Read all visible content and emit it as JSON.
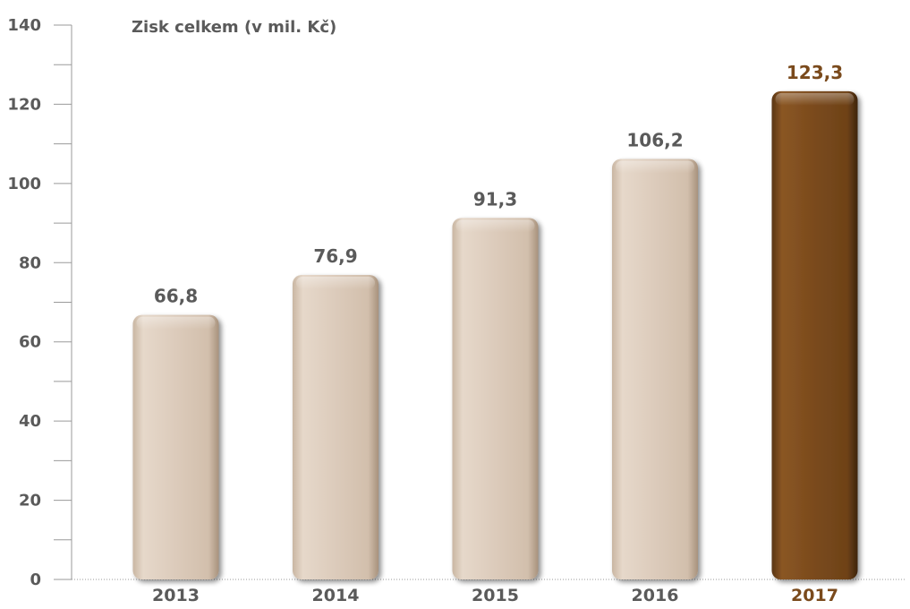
{
  "chart_data": {
    "type": "bar",
    "title": "Zisk celkem (v mil. Kč)",
    "xlabel": "",
    "ylabel": "",
    "categories": [
      "2013",
      "2014",
      "2015",
      "2016",
      "2017"
    ],
    "values": [
      66.8,
      76.9,
      91.3,
      106.2,
      123.3
    ],
    "value_labels": [
      "66,8",
      "76,9",
      "91,3",
      "106,2",
      "123,3"
    ],
    "ylim": [
      0,
      140
    ],
    "y_ticks": [
      0,
      20,
      40,
      60,
      80,
      100,
      120,
      140
    ],
    "y_tick_labels": [
      "0",
      "20",
      "40",
      "60",
      "80",
      "100",
      "120",
      "140"
    ],
    "grid": false,
    "colors": {
      "default_bar": "#dccbbb",
      "highlight_bar": "#7a4a1c",
      "highlight_text": "#7a4a1c",
      "text": "#5a5a5a",
      "axis": "#9a9a9a"
    },
    "highlight_index": 4
  }
}
